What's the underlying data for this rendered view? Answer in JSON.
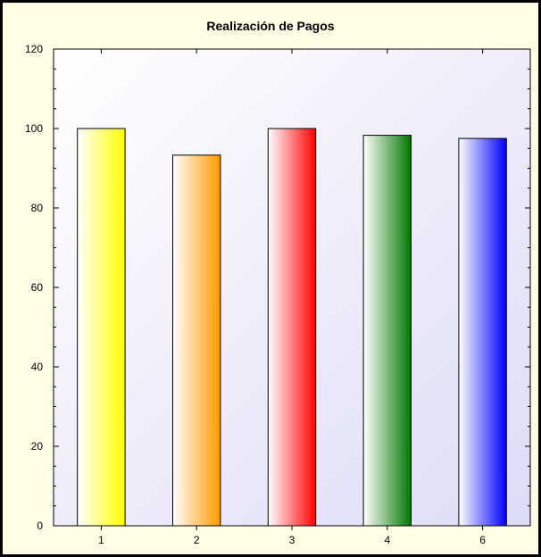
{
  "chart_data": {
    "type": "bar",
    "title": "Realización de Pagos",
    "xlabel": "",
    "ylabel": "",
    "categories": [
      "1",
      "2",
      "3",
      "4",
      "6"
    ],
    "values": [
      100,
      93.3,
      100,
      98.3,
      97.5
    ],
    "ylim": [
      0,
      120
    ],
    "yticks": [
      0,
      20,
      40,
      60,
      80,
      100,
      120
    ],
    "grid": false,
    "legend": "none",
    "bar_colors": [
      "#ffff00",
      "#ff9900",
      "#ff0000",
      "#007700",
      "#0000ff"
    ],
    "plot_background": [
      "#ffffff",
      "#dcdcf6"
    ],
    "frame_background": "#fffde6"
  }
}
